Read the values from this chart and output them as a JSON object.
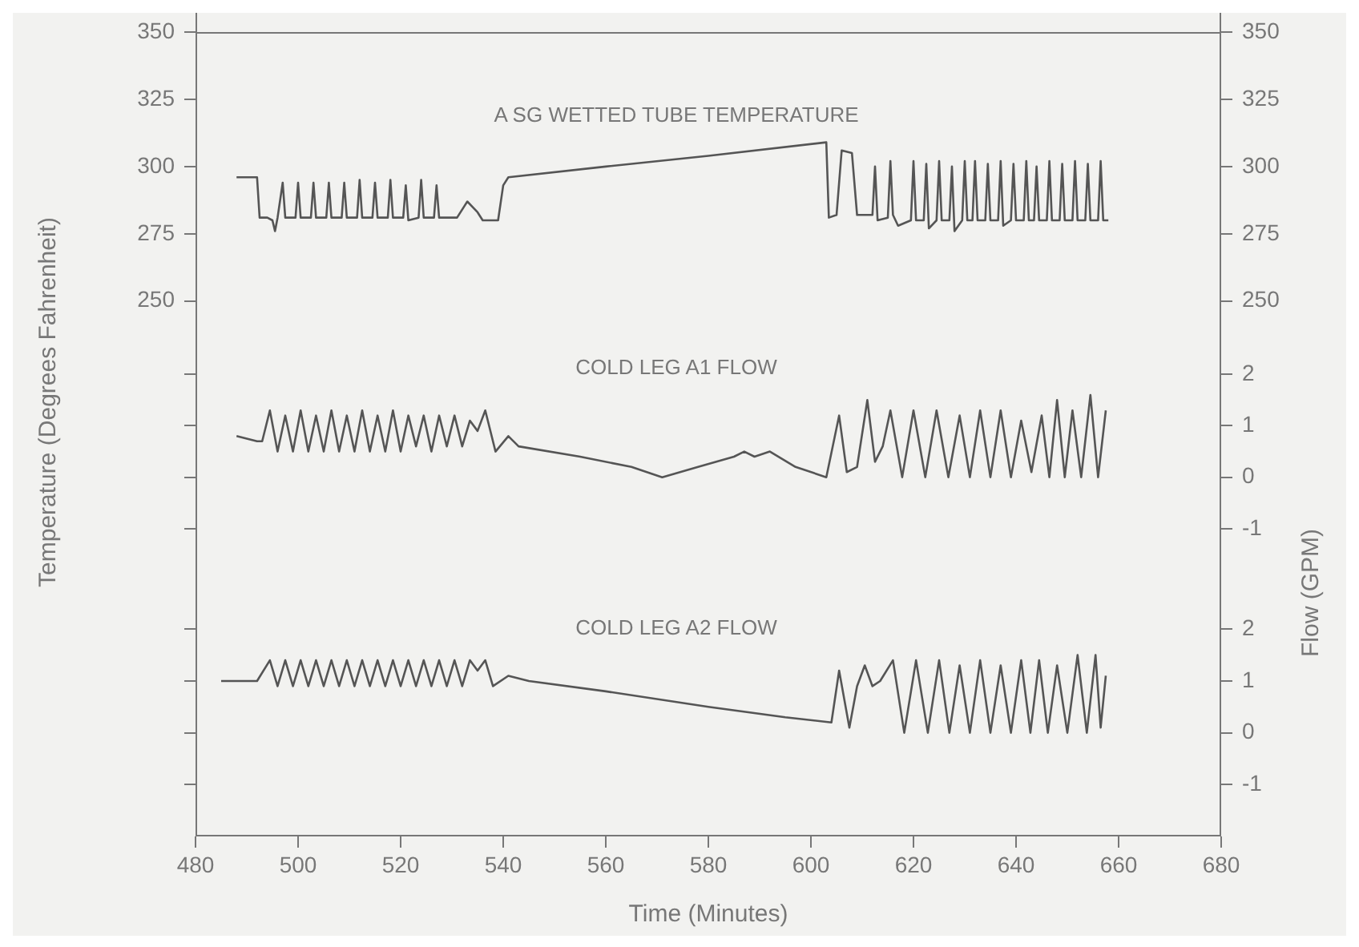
{
  "chart_data": [
    {
      "type": "line",
      "ylabel": "Temperature (Degrees Fahrenheit)",
      "xlim": [
        480,
        680
      ],
      "ylim": [
        238,
        350
      ],
      "yticks": [
        250,
        275,
        300,
        325,
        350
      ],
      "y2lim": [
        238,
        350
      ],
      "y2ticks": [
        250,
        275,
        300,
        325,
        350
      ],
      "tick_labels": "y",
      "marker": "none",
      "legend": false,
      "series": [
        {
          "name": "A SG WETTED TUBE TEMPERATURE",
          "color": "#555555",
          "x": [
            488,
            492,
            492.5,
            494,
            495,
            495.5,
            496,
            497,
            497.5,
            499.5,
            500,
            500.5,
            502.5,
            503,
            503.5,
            505.5,
            506,
            506.5,
            508.5,
            509,
            509.5,
            511.5,
            512,
            512.5,
            514.5,
            515,
            515.5,
            517.5,
            518,
            518.5,
            520.5,
            521,
            521.5,
            523.5,
            524,
            524.5,
            526.5,
            527,
            527.5,
            531,
            533,
            535,
            536,
            539,
            540,
            541,
            560,
            580,
            603,
            603.5,
            605,
            606,
            608,
            609,
            612,
            612.5,
            613,
            615,
            615.5,
            616,
            617,
            619.5,
            620,
            620.5,
            622,
            622.5,
            623,
            624.5,
            625,
            625.5,
            627,
            627.5,
            628,
            629.5,
            630,
            630.5,
            631.5,
            632,
            632.5,
            634,
            634.5,
            635,
            636.5,
            637,
            637.5,
            639,
            639.5,
            640,
            641.5,
            642,
            642.5,
            643.5,
            644,
            644.5,
            646,
            646.5,
            647,
            648.5,
            649,
            649.5,
            651,
            651.5,
            652,
            653.5,
            654,
            654.5,
            656,
            656.5,
            657,
            658
          ],
          "values": [
            296,
            296,
            281,
            281,
            280,
            276,
            281,
            294,
            281,
            281,
            294,
            281,
            281,
            294,
            281,
            281,
            294,
            281,
            281,
            294,
            281,
            281,
            295,
            281,
            281,
            294,
            281,
            281,
            295,
            281,
            281,
            293,
            280,
            281,
            295,
            281,
            281,
            293,
            281,
            281,
            287,
            283,
            280,
            280,
            293,
            296,
            300,
            304,
            309,
            281,
            282,
            306,
            305,
            282,
            282,
            300,
            280,
            281,
            302,
            282,
            278,
            280,
            302,
            280,
            280,
            301,
            277,
            280,
            302,
            280,
            280,
            300,
            276,
            280,
            302,
            280,
            280,
            302,
            280,
            280,
            301,
            280,
            280,
            302,
            278,
            280,
            301,
            280,
            280,
            302,
            280,
            280,
            300,
            280,
            280,
            302,
            280,
            280,
            301,
            280,
            280,
            302,
            280,
            280,
            301,
            280,
            280,
            302,
            280,
            280
          ]
        }
      ]
    },
    {
      "type": "line",
      "ylabel": "Flow (GPM)",
      "xlim": [
        480,
        680
      ],
      "ylim": [
        -2.25,
        2.8
      ],
      "yticks": [
        -1,
        0,
        1,
        2
      ],
      "tick_labels": "y",
      "marker": "none",
      "legend": false,
      "series": [
        {
          "name": "COLD LEG A1 FLOW",
          "color": "#555555",
          "x": [
            488,
            492,
            493,
            494.5,
            496,
            497.5,
            499,
            500.5,
            502,
            503.5,
            505,
            506.5,
            508,
            509.5,
            511,
            512.5,
            514,
            515.5,
            517,
            518.5,
            520,
            521.5,
            523,
            524.5,
            526,
            527.5,
            529,
            530.5,
            532,
            533.5,
            535,
            536.5,
            538.5,
            541,
            543,
            555,
            565,
            571,
            578,
            585,
            587,
            589,
            592,
            597,
            603,
            605.5,
            607,
            609,
            611,
            612.5,
            614,
            615.5,
            617.8,
            620,
            622.3,
            624.5,
            626.8,
            629,
            631,
            633,
            635,
            637,
            639,
            641,
            643,
            645,
            646.5,
            648,
            649.5,
            651,
            652.7,
            654.5,
            656,
            657.5
          ],
          "values": [
            0.8,
            0.7,
            0.7,
            1.3,
            0.5,
            1.2,
            0.5,
            1.3,
            0.5,
            1.2,
            0.5,
            1.3,
            0.5,
            1.2,
            0.5,
            1.3,
            0.5,
            1.2,
            0.5,
            1.3,
            0.5,
            1.2,
            0.6,
            1.2,
            0.5,
            1.2,
            0.6,
            1.2,
            0.6,
            1.1,
            0.9,
            1.3,
            0.5,
            0.8,
            0.6,
            0.4,
            0.2,
            0,
            0.2,
            0.4,
            0.5,
            0.4,
            0.5,
            0.2,
            0,
            1.2,
            0.1,
            0.2,
            1.5,
            0.3,
            0.6,
            1.3,
            0,
            1.3,
            0,
            1.3,
            0,
            1.2,
            0,
            1.3,
            0,
            1.3,
            0,
            1.1,
            0.1,
            1.2,
            0,
            1.5,
            0,
            1.3,
            0,
            1.6,
            0,
            1.3
          ]
        }
      ]
    },
    {
      "type": "line",
      "xlabel": "Time (Minutes)",
      "xlim": [
        480,
        680
      ],
      "xticks": [
        480,
        500,
        520,
        540,
        560,
        580,
        600,
        620,
        640,
        660,
        680
      ],
      "ylim": [
        -2,
        2.7
      ],
      "yticks": [
        -1,
        0,
        1,
        2
      ],
      "marker": "none",
      "legend": false,
      "series": [
        {
          "name": "COLD LEG A2 FLOW",
          "color": "#555555",
          "x": [
            485,
            492,
            494.5,
            496,
            497.5,
            499,
            500.5,
            502,
            503.5,
            505,
            506.5,
            508,
            509.5,
            511,
            512.5,
            514,
            515.5,
            517,
            518.5,
            520,
            521.5,
            523,
            524.5,
            526,
            527.5,
            529,
            530.5,
            532,
            533.5,
            535,
            536.5,
            538,
            541,
            545,
            560,
            580,
            595,
            604,
            605.5,
            607.5,
            609,
            610.5,
            612,
            613.5,
            616,
            618.2,
            620.5,
            622.8,
            625,
            627,
            629,
            631,
            633,
            635,
            637,
            639,
            641,
            642.8,
            644.5,
            646.2,
            648,
            650,
            652,
            653.8,
            655.5,
            656.5,
            657.5
          ],
          "values": [
            1,
            1,
            1.4,
            0.9,
            1.4,
            0.9,
            1.4,
            0.9,
            1.4,
            0.9,
            1.4,
            0.9,
            1.4,
            0.9,
            1.4,
            0.9,
            1.4,
            0.9,
            1.4,
            0.9,
            1.4,
            0.9,
            1.4,
            0.9,
            1.4,
            0.9,
            1.4,
            0.9,
            1.4,
            1.2,
            1.4,
            0.9,
            1.1,
            1,
            0.8,
            0.5,
            0.3,
            0.2,
            1.2,
            0.1,
            0.9,
            1.3,
            0.9,
            1,
            1.4,
            0,
            1.4,
            0,
            1.4,
            0,
            1.3,
            0,
            1.4,
            0,
            1.3,
            0,
            1.4,
            0,
            1.4,
            0,
            1.3,
            0,
            1.5,
            0,
            1.5,
            0.1,
            1.1
          ]
        }
      ]
    }
  ]
}
